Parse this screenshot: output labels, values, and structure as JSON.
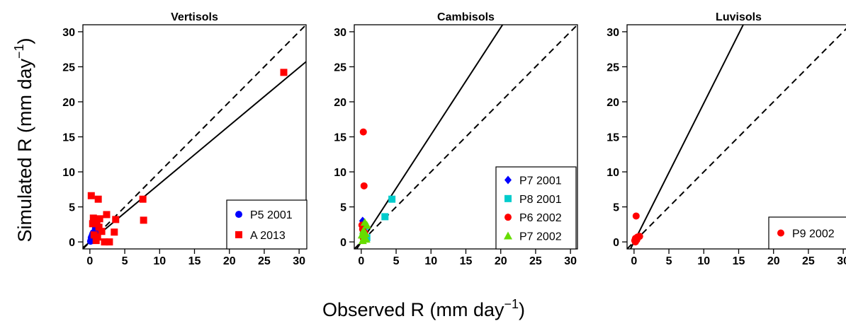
{
  "ylabel": "Simulated R (mm day",
  "xlabel": "Observed R (mm day",
  "exponent": "−1",
  "unit_close": ")",
  "chart_data": [
    {
      "type": "scatter",
      "title": "Vertisols",
      "xlim": [
        -1,
        31
      ],
      "ylim": [
        -1,
        31
      ],
      "ticks": [
        0,
        5,
        10,
        15,
        20,
        25,
        30
      ],
      "one_to_one_line": "dashed",
      "regression_slope": 0.83,
      "legend_position": "bottom-right",
      "series": [
        {
          "name": "P5 2001",
          "marker": "circle",
          "color": "#0000ff",
          "x": [
            0.1,
            0.2,
            0.3,
            0.4,
            0.5,
            0.6,
            0.7,
            0.8,
            0.9,
            1.0,
            0.3,
            0.6,
            0.2,
            0.5,
            0.8,
            1.0,
            0.4,
            0.7
          ],
          "y": [
            0.1,
            0.4,
            0.8,
            1.1,
            1.3,
            0.6,
            1.5,
            1.9,
            2.4,
            2.5,
            0.3,
            0.9,
            0.6,
            0.2,
            1.2,
            1.6,
            1.0,
            0.5
          ]
        },
        {
          "name": "A 2013",
          "marker": "square",
          "color": "#ff0000",
          "x": [
            0.2,
            0.5,
            1.2,
            1.4,
            2.4,
            3.7,
            3.5,
            7.6,
            7.7,
            27.8,
            0.6,
            1.1,
            1.3,
            2.1,
            2.8,
            0.9,
            1.7,
            0.4,
            1.0
          ],
          "y": [
            6.6,
            3.4,
            6.1,
            3.3,
            3.9,
            3.2,
            1.4,
            6.1,
            3.1,
            24.2,
            1.0,
            0.7,
            2.1,
            0.0,
            0.0,
            0.2,
            1.5,
            2.6,
            3.0
          ]
        }
      ]
    },
    {
      "type": "scatter",
      "title": "Cambisols",
      "xlim": [
        -1,
        31
      ],
      "ylim": [
        -1,
        31
      ],
      "ticks": [
        0,
        5,
        10,
        15,
        20,
        25,
        30
      ],
      "one_to_one_line": "dashed",
      "regression_slope": 1.53,
      "legend_position": "bottom-right",
      "series": [
        {
          "name": "P7 2001",
          "marker": "diamond",
          "color": "#0000ff",
          "x": [
            0.2,
            0.4,
            0.6,
            0.3
          ],
          "y": [
            3.0,
            1.6,
            0.8,
            0.4
          ]
        },
        {
          "name": "P8 2001",
          "marker": "square",
          "color": "#00cccc",
          "x": [
            4.4,
            3.4,
            0.5,
            0.3,
            0.8
          ],
          "y": [
            6.1,
            3.6,
            2.2,
            1.0,
            0.6
          ]
        },
        {
          "name": "P6 2002",
          "marker": "circle",
          "color": "#ff0000",
          "x": [
            0.3,
            0.4,
            0.1,
            0.2,
            0.5,
            0.3
          ],
          "y": [
            15.7,
            8.0,
            2.4,
            1.8,
            1.3,
            0.5
          ]
        },
        {
          "name": "P7 2002",
          "marker": "triangle",
          "color": "#66dd00",
          "x": [
            0.2,
            0.4,
            0.6,
            0.8,
            0.3,
            0.5,
            0.7,
            0.1
          ],
          "y": [
            0.2,
            0.6,
            1.2,
            2.4,
            1.6,
            2.8,
            0.4,
            1.0
          ]
        }
      ]
    },
    {
      "type": "scatter",
      "title": "Luvisols",
      "xlim": [
        -1,
        31
      ],
      "ylim": [
        -1,
        31
      ],
      "ticks": [
        0,
        5,
        10,
        15,
        20,
        25,
        30
      ],
      "one_to_one_line": "dashed",
      "regression_slope": 1.98,
      "legend_position": "bottom-right",
      "series": [
        {
          "name": "P9 2002",
          "marker": "circle",
          "color": "#ff0000",
          "x": [
            0.1,
            0.2,
            0.3,
            0.5,
            0.8,
            0.2,
            0.4
          ],
          "y": [
            0.2,
            0.5,
            3.7,
            0.7,
            0.8,
            0.0,
            0.3
          ]
        }
      ]
    }
  ]
}
